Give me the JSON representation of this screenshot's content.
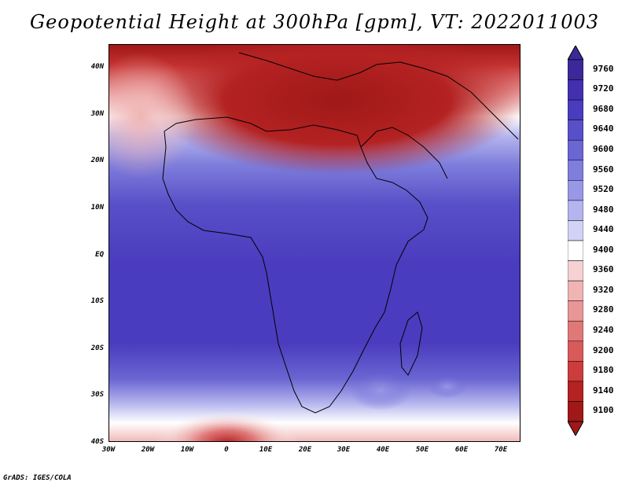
{
  "title": "Geopotential Height at 300hPa [gpm], VT: 2022011003",
  "footer": "GrADS: IGES/COLA",
  "lat_labels": [
    "40N",
    "30N",
    "20N",
    "10N",
    "EQ",
    "10S",
    "20S",
    "30S",
    "40S"
  ],
  "lon_labels": [
    "30W",
    "20W",
    "10W",
    "0",
    "10E",
    "20E",
    "30E",
    "40E",
    "50E",
    "60E",
    "70E"
  ],
  "colorbar": {
    "levels": [
      "9760",
      "9720",
      "9680",
      "9640",
      "9600",
      "9560",
      "9520",
      "9480",
      "9440",
      "9400",
      "9360",
      "9320",
      "9280",
      "9240",
      "9200",
      "9180",
      "9140",
      "9100"
    ],
    "colors": [
      "#3c2898",
      "#4230ae",
      "#4a3cbe",
      "#5850c8",
      "#6a66d2",
      "#7f7edc",
      "#9898e6",
      "#b4b4ee",
      "#d2d2f6",
      "#ffffff",
      "#f7d2d2",
      "#f0b4b4",
      "#e89696",
      "#e07878",
      "#d85a5a",
      "#cc3c3c",
      "#b42222",
      "#a01818"
    ]
  },
  "colors": {
    "ocean_south": "#4a3cbe",
    "ocean_equator": "#4a3cbe",
    "tropics_high": "#5850c8",
    "north_white": "#ffffff",
    "north_red": "#b42222",
    "coast": "#000000"
  }
}
